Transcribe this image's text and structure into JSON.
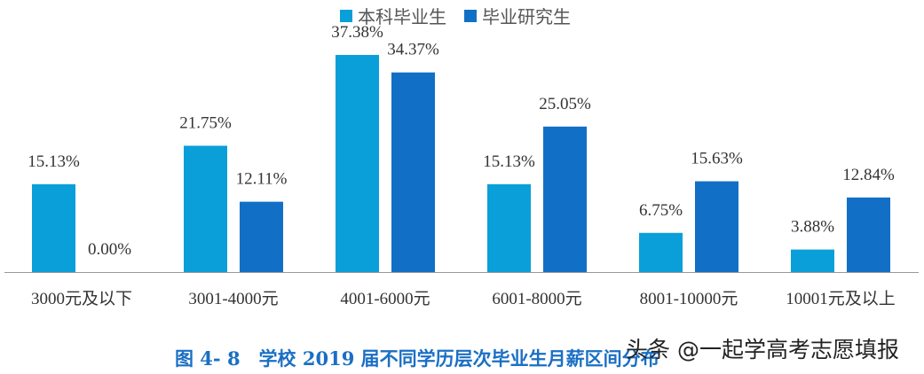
{
  "chart_data": {
    "type": "bar",
    "title": "图 4- 8　学校 2019 届不同学历层次毕业生月薪区间分布",
    "categories": [
      "3000元及以下",
      "3001-4000元",
      "4001-6000元",
      "6001-8000元",
      "8001-10000元",
      "10001元及以上"
    ],
    "series": [
      {
        "name": "本科毕业生",
        "color": "#0a9fd9",
        "values": [
          15.13,
          21.75,
          37.38,
          15.13,
          6.75,
          3.88
        ]
      },
      {
        "name": "毕业研究生",
        "color": "#1170c6",
        "values": [
          0.0,
          12.11,
          34.37,
          25.05,
          15.63,
          12.84
        ]
      }
    ],
    "ylim": [
      0,
      40
    ],
    "grid": false,
    "legend": "top-center",
    "value_suffix": "%"
  },
  "watermark": "头条 @一起学高考志愿填报"
}
